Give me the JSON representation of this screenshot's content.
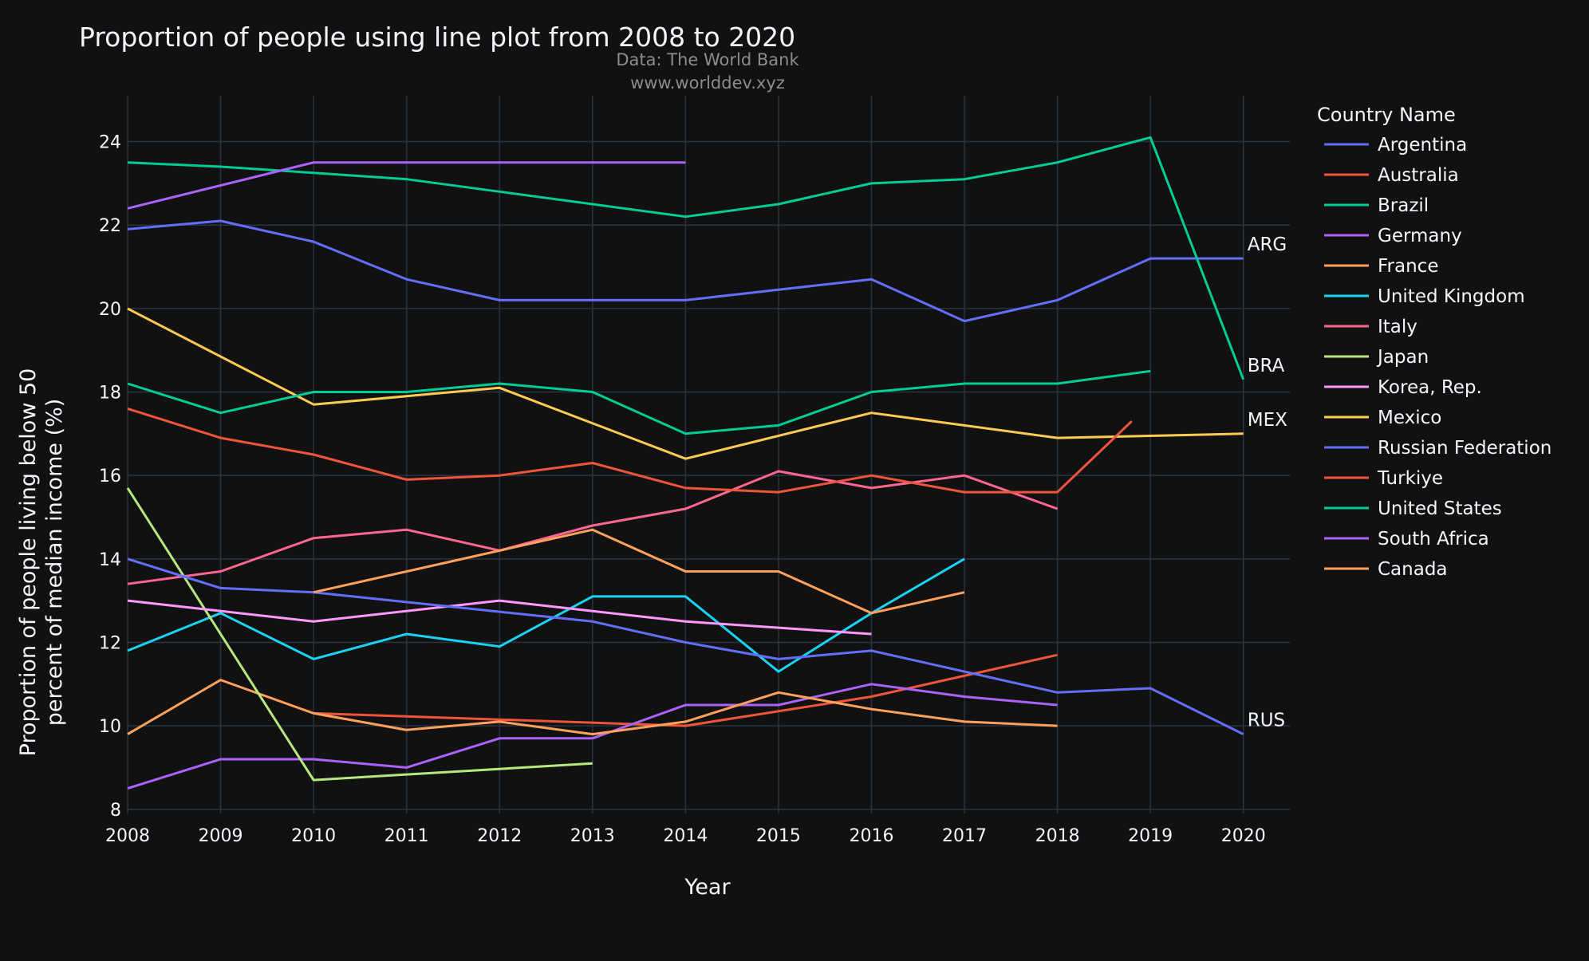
{
  "chart_data": {
    "type": "line",
    "title": "Proportion of people using line plot from 2008 to 2020",
    "subtitle_lines": [
      "Data: The World Bank",
      "www.worlddev.xyz"
    ],
    "xlabel": "Year",
    "ylabel_lines": [
      "Proportion of people living below 50",
      "percent of median income (%)"
    ],
    "x": [
      2008,
      2009,
      2010,
      2011,
      2012,
      2013,
      2014,
      2015,
      2016,
      2017,
      2018,
      2019,
      2020
    ],
    "xlim": [
      2008,
      2020.5
    ],
    "ylim": [
      7.9,
      25.1
    ],
    "y_ticks": [
      8,
      10,
      12,
      14,
      16,
      18,
      20,
      22,
      24
    ],
    "grid": true,
    "legend": {
      "title": "Country Name",
      "placement": "right"
    },
    "colors": {
      "background": "#111111",
      "grid": "#283442",
      "text": "#f2f5fa",
      "subtitle": "#8c8c8c"
    },
    "series": [
      {
        "name": "Argentina",
        "color": "#636efa",
        "values": [
          21.9,
          22.1,
          21.6,
          20.7,
          20.2,
          20.2,
          20.2,
          20.45,
          20.7,
          19.7,
          20.2,
          21.2,
          21.2
        ],
        "end_label": "ARG"
      },
      {
        "name": "Australia",
        "color": "#ef553b",
        "values": [
          null,
          null,
          10.3,
          null,
          null,
          null,
          10.0,
          null,
          10.7,
          null,
          11.7,
          null,
          null
        ]
      },
      {
        "name": "Brazil",
        "color": "#00cc96",
        "values": [
          23.5,
          23.4,
          23.25,
          23.1,
          22.8,
          22.5,
          22.2,
          22.5,
          23.0,
          23.1,
          23.5,
          24.1,
          18.3
        ],
        "end_label": "BRA"
      },
      {
        "name": "Germany",
        "color": "#ab63fa",
        "values": [
          8.5,
          9.2,
          9.2,
          9.0,
          9.7,
          9.7,
          10.5,
          10.5,
          11.0,
          10.7,
          10.5,
          null,
          null
        ]
      },
      {
        "name": "France",
        "color": "#ffa15a",
        "values": [
          9.8,
          11.1,
          10.3,
          9.9,
          10.1,
          9.8,
          10.1,
          10.8,
          10.4,
          10.1,
          10.0,
          null,
          null
        ]
      },
      {
        "name": "United Kingdom",
        "color": "#19d3f3",
        "values": [
          11.8,
          12.7,
          11.6,
          12.2,
          11.9,
          13.1,
          13.1,
          11.3,
          12.7,
          14.0,
          null,
          null,
          null
        ]
      },
      {
        "name": "Italy",
        "color": "#ff6692",
        "values": [
          13.4,
          13.7,
          14.5,
          14.7,
          14.2,
          14.8,
          15.2,
          16.1,
          15.7,
          16.0,
          15.2,
          null,
          null
        ]
      },
      {
        "name": "Japan",
        "color": "#b6e880",
        "values": [
          15.7,
          null,
          8.7,
          null,
          null,
          9.1,
          null,
          null,
          null,
          null,
          null,
          null,
          null
        ]
      },
      {
        "name": "Korea, Rep.",
        "color": "#ff97ff",
        "values": [
          13.0,
          null,
          12.5,
          null,
          13.0,
          null,
          12.5,
          null,
          12.2,
          null,
          null,
          null,
          null
        ]
      },
      {
        "name": "Mexico",
        "color": "#fecb52",
        "values": [
          20.0,
          null,
          17.7,
          null,
          18.1,
          null,
          16.4,
          null,
          17.5,
          null,
          16.9,
          null,
          17.0
        ],
        "end_label": "MEX"
      },
      {
        "name": "Russian Federation",
        "color": "#636efa",
        "values": [
          14.0,
          13.3,
          13.2,
          null,
          null,
          12.5,
          12.0,
          11.6,
          11.8,
          null,
          10.8,
          10.9,
          9.8
        ],
        "end_label": "RUS"
      },
      {
        "name": "Turkiye",
        "color": "#ef553b",
        "values": [
          17.6,
          16.9,
          16.5,
          15.9,
          16.0,
          16.3,
          15.7,
          15.6,
          16.0,
          15.6,
          15.6,
          null,
          null
        ],
        "extra_point": [
          2018.8,
          17.3
        ]
      },
      {
        "name": "United States",
        "color": "#00cc96",
        "values": [
          18.2,
          17.5,
          18.0,
          18.0,
          18.2,
          18.0,
          17.0,
          17.2,
          18.0,
          18.2,
          18.2,
          18.5,
          null
        ]
      },
      {
        "name": "South Africa",
        "color": "#ab63fa",
        "values": [
          22.4,
          null,
          23.5,
          23.5,
          23.5,
          23.5,
          23.5,
          null,
          null,
          null,
          null,
          null,
          null
        ]
      },
      {
        "name": "Canada",
        "color": "#ffa15a",
        "values": [
          null,
          null,
          13.2,
          null,
          null,
          14.7,
          13.7,
          13.7,
          12.7,
          13.2,
          null,
          null,
          null
        ]
      }
    ]
  }
}
